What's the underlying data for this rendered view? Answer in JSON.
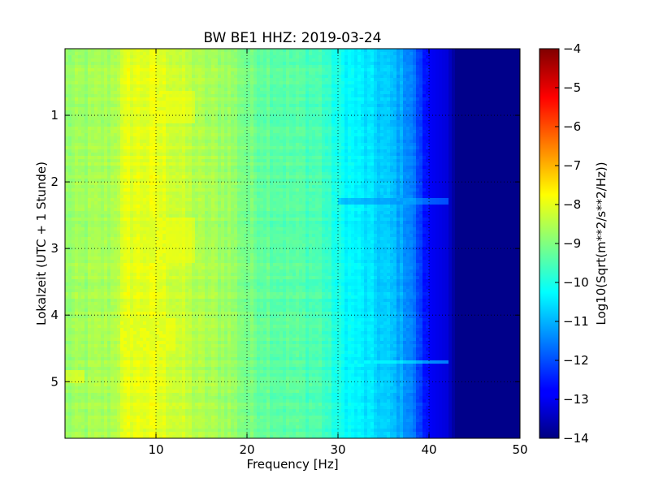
{
  "chart_data": {
    "type": "heatmap",
    "title": "BW BE1 HHZ: 2019-03-24",
    "xlabel": "Frequency [Hz]",
    "ylabel": "Lokalzeit (UTC + 1 Stunde)",
    "colorbar_label": "Log10(Sqrt(m**2/s**2/Hz))",
    "xlim": [
      0,
      50
    ],
    "ylim": [
      5.85,
      0
    ],
    "x_ticks": [
      10,
      20,
      30,
      40,
      50
    ],
    "y_ticks": [
      1,
      2,
      3,
      4,
      5
    ],
    "color_range": [
      -14,
      -4
    ],
    "colorbar_ticks": [
      -4,
      -5,
      -6,
      -7,
      -8,
      -9,
      -10,
      -11,
      -12,
      -13,
      -14
    ],
    "colormap": "jet",
    "grid": true,
    "grid_style": "dotted",
    "profile": {
      "frequency": [
        0,
        5,
        7,
        10,
        12,
        15,
        18,
        20,
        25,
        28,
        30,
        33,
        36,
        38,
        39,
        40,
        42,
        43,
        50
      ],
      "value": [
        -8.8,
        -8.6,
        -8.0,
        -8.0,
        -8.2,
        -8.6,
        -8.7,
        -9.1,
        -9.4,
        -9.5,
        -10.1,
        -10.5,
        -10.9,
        -11.4,
        -12.2,
        -12.8,
        -13.1,
        -13.9,
        -13.9
      ]
    },
    "features": [
      {
        "frequency": [
          10,
          14
        ],
        "time": [
          0.6,
          1.1
        ],
        "value": -8.0
      },
      {
        "frequency": [
          9,
          14
        ],
        "time": [
          2.5,
          3.2
        ],
        "value": -8.0
      },
      {
        "frequency": [
          6,
          12
        ],
        "time": [
          4.0,
          4.5
        ],
        "value": -8.0
      },
      {
        "frequency": [
          0,
          2
        ],
        "time": [
          4.8,
          5.0
        ],
        "value": -8.0
      },
      {
        "frequency": [
          31,
          42
        ],
        "time": [
          4.65,
          4.72
        ],
        "value": -10.3
      },
      {
        "frequency": [
          30,
          42
        ],
        "time": [
          2.2,
          2.3
        ],
        "value": -11.2
      }
    ]
  }
}
